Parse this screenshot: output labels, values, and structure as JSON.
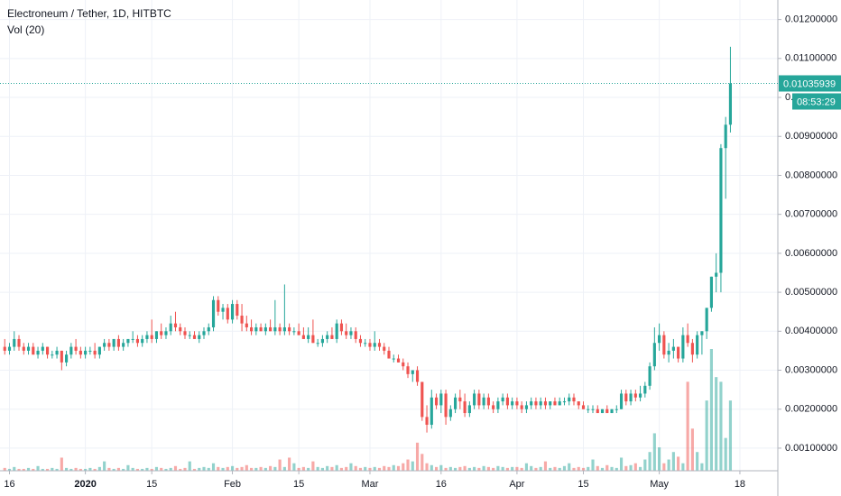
{
  "chart_data": {
    "type": "candlestick",
    "title": "Electroneum / Tether, 1D, HITBTC",
    "subtitle": "Vol (20)",
    "countdown": "08:53:29",
    "up_color": "#26a69a",
    "down_color": "#ef5350",
    "ylim": [
      0.00042,
      0.0125
    ],
    "yticks": [
      {
        "value": 0.001,
        "label": "0.00100000"
      },
      {
        "value": 0.002,
        "label": "0.00200000"
      },
      {
        "value": 0.003,
        "label": "0.00300000"
      },
      {
        "value": 0.004,
        "label": "0.00400000"
      },
      {
        "value": 0.005,
        "label": "0.00500000"
      },
      {
        "value": 0.006,
        "label": "0.00600000"
      },
      {
        "value": 0.007,
        "label": "0.00700000"
      },
      {
        "value": 0.008,
        "label": "0.00800000"
      },
      {
        "value": 0.009,
        "label": "0.00900000"
      },
      {
        "value": 0.01,
        "label": "0.01000000"
      },
      {
        "value": 0.011,
        "label": "0.01100000"
      },
      {
        "value": 0.012,
        "label": "0.01200000"
      }
    ],
    "xlim": [
      "2019-12-14",
      "2020-05-26"
    ],
    "xticks": [
      {
        "value": "2019-12-16",
        "label": "16"
      },
      {
        "value": "2020-01-01",
        "label": "2020"
      },
      {
        "value": "2020-01-15",
        "label": "15"
      },
      {
        "value": "2020-02-01",
        "label": "Feb"
      },
      {
        "value": "2020-02-15",
        "label": "15"
      },
      {
        "value": "2020-03-01",
        "label": "Mar"
      },
      {
        "value": "2020-03-16",
        "label": "16"
      },
      {
        "value": "2020-04-01",
        "label": "Apr"
      },
      {
        "value": "2020-04-15",
        "label": "15"
      },
      {
        "value": "2020-05-01",
        "label": "May"
      },
      {
        "value": "2020-05-18",
        "label": "18"
      }
    ],
    "grid": true,
    "x": [
      "2019-12-15",
      "2019-12-16",
      "2019-12-17",
      "2019-12-18",
      "2019-12-19",
      "2019-12-20",
      "2019-12-21",
      "2019-12-22",
      "2019-12-23",
      "2019-12-24",
      "2019-12-25",
      "2019-12-26",
      "2019-12-27",
      "2019-12-28",
      "2019-12-29",
      "2019-12-30",
      "2019-12-31",
      "2020-01-01",
      "2020-01-02",
      "2020-01-03",
      "2020-01-04",
      "2020-01-05",
      "2020-01-06",
      "2020-01-07",
      "2020-01-08",
      "2020-01-09",
      "2020-01-10",
      "2020-01-11",
      "2020-01-12",
      "2020-01-13",
      "2020-01-14",
      "2020-01-15",
      "2020-01-16",
      "2020-01-17",
      "2020-01-18",
      "2020-01-19",
      "2020-01-20",
      "2020-01-21",
      "2020-01-22",
      "2020-01-23",
      "2020-01-24",
      "2020-01-25",
      "2020-01-26",
      "2020-01-27",
      "2020-01-28",
      "2020-01-29",
      "2020-01-30",
      "2020-01-31",
      "2020-02-01",
      "2020-02-02",
      "2020-02-03",
      "2020-02-04",
      "2020-02-05",
      "2020-02-06",
      "2020-02-07",
      "2020-02-08",
      "2020-02-09",
      "2020-02-10",
      "2020-02-11",
      "2020-02-12",
      "2020-02-13",
      "2020-02-14",
      "2020-02-15",
      "2020-02-16",
      "2020-02-17",
      "2020-02-18",
      "2020-02-19",
      "2020-02-20",
      "2020-02-21",
      "2020-02-22",
      "2020-02-23",
      "2020-02-24",
      "2020-02-25",
      "2020-02-26",
      "2020-02-27",
      "2020-02-28",
      "2020-02-29",
      "2020-03-01",
      "2020-03-02",
      "2020-03-03",
      "2020-03-04",
      "2020-03-05",
      "2020-03-06",
      "2020-03-07",
      "2020-03-08",
      "2020-03-09",
      "2020-03-10",
      "2020-03-11",
      "2020-03-12",
      "2020-03-13",
      "2020-03-14",
      "2020-03-15",
      "2020-03-16",
      "2020-03-17",
      "2020-03-18",
      "2020-03-19",
      "2020-03-20",
      "2020-03-21",
      "2020-03-22",
      "2020-03-23",
      "2020-03-24",
      "2020-03-25",
      "2020-03-26",
      "2020-03-27",
      "2020-03-28",
      "2020-03-29",
      "2020-03-30",
      "2020-03-31",
      "2020-04-01",
      "2020-04-02",
      "2020-04-03",
      "2020-04-04",
      "2020-04-05",
      "2020-04-06",
      "2020-04-07",
      "2020-04-08",
      "2020-04-09",
      "2020-04-10",
      "2020-04-11",
      "2020-04-12",
      "2020-04-13",
      "2020-04-14",
      "2020-04-15",
      "2020-04-16",
      "2020-04-17",
      "2020-04-18",
      "2020-04-19",
      "2020-04-20",
      "2020-04-21",
      "2020-04-22",
      "2020-04-23",
      "2020-04-24",
      "2020-04-25",
      "2020-04-26",
      "2020-04-27",
      "2020-04-28",
      "2020-04-29",
      "2020-04-30",
      "2020-05-01",
      "2020-05-02",
      "2020-05-03",
      "2020-05-04",
      "2020-05-05",
      "2020-05-06",
      "2020-05-07",
      "2020-05-08",
      "2020-05-09",
      "2020-05-10",
      "2020-05-11",
      "2020-05-12",
      "2020-05-13",
      "2020-05-14",
      "2020-05-15",
      "2020-05-16"
    ],
    "ohlc": [
      [
        0.0036,
        0.0038,
        0.0034,
        0.0035
      ],
      [
        0.0035,
        0.0037,
        0.0034,
        0.0036
      ],
      [
        0.0036,
        0.004,
        0.0035,
        0.0038
      ],
      [
        0.0038,
        0.0039,
        0.0035,
        0.0036
      ],
      [
        0.0036,
        0.0037,
        0.0034,
        0.0035
      ],
      [
        0.0035,
        0.0037,
        0.0034,
        0.0036
      ],
      [
        0.0036,
        0.0037,
        0.0034,
        0.0034
      ],
      [
        0.0034,
        0.0036,
        0.0033,
        0.0035
      ],
      [
        0.0035,
        0.0037,
        0.0034,
        0.0036
      ],
      [
        0.0036,
        0.0036,
        0.0033,
        0.0034
      ],
      [
        0.0034,
        0.0035,
        0.0033,
        0.0034
      ],
      [
        0.0034,
        0.0036,
        0.0033,
        0.0035
      ],
      [
        0.0035,
        0.0035,
        0.003,
        0.0032
      ],
      [
        0.0032,
        0.0035,
        0.0031,
        0.0034
      ],
      [
        0.0034,
        0.0037,
        0.0033,
        0.0036
      ],
      [
        0.0036,
        0.0038,
        0.0034,
        0.0035
      ],
      [
        0.0035,
        0.0036,
        0.0033,
        0.0034
      ],
      [
        0.0034,
        0.0036,
        0.0033,
        0.0035
      ],
      [
        0.0035,
        0.0036,
        0.0034,
        0.0035
      ],
      [
        0.0035,
        0.0037,
        0.0033,
        0.0034
      ],
      [
        0.0034,
        0.0036,
        0.0033,
        0.0036
      ],
      [
        0.0036,
        0.0038,
        0.0035,
        0.0037
      ],
      [
        0.0037,
        0.0038,
        0.0035,
        0.0036
      ],
      [
        0.0036,
        0.0038,
        0.0035,
        0.0038
      ],
      [
        0.0038,
        0.0039,
        0.0035,
        0.0036
      ],
      [
        0.0036,
        0.0038,
        0.0035,
        0.0037
      ],
      [
        0.0037,
        0.0038,
        0.0036,
        0.0038
      ],
      [
        0.0038,
        0.004,
        0.0037,
        0.0038
      ],
      [
        0.0038,
        0.0039,
        0.0036,
        0.0037
      ],
      [
        0.0037,
        0.0039,
        0.0036,
        0.0038
      ],
      [
        0.0038,
        0.004,
        0.0037,
        0.0039
      ],
      [
        0.0039,
        0.0043,
        0.0037,
        0.0038
      ],
      [
        0.0038,
        0.004,
        0.0037,
        0.004
      ],
      [
        0.004,
        0.0042,
        0.0038,
        0.0039
      ],
      [
        0.0039,
        0.0041,
        0.0038,
        0.004
      ],
      [
        0.004,
        0.0044,
        0.0039,
        0.0042
      ],
      [
        0.0042,
        0.0045,
        0.004,
        0.0041
      ],
      [
        0.0041,
        0.0042,
        0.0039,
        0.004
      ],
      [
        0.004,
        0.0041,
        0.0038,
        0.0039
      ],
      [
        0.0039,
        0.004,
        0.0038,
        0.0039
      ],
      [
        0.0039,
        0.004,
        0.0038,
        0.0038
      ],
      [
        0.0038,
        0.004,
        0.0037,
        0.0039
      ],
      [
        0.0039,
        0.0041,
        0.0038,
        0.004
      ],
      [
        0.004,
        0.0042,
        0.0039,
        0.0041
      ],
      [
        0.0041,
        0.0049,
        0.004,
        0.0048
      ],
      [
        0.0048,
        0.0049,
        0.0044,
        0.0045
      ],
      [
        0.0045,
        0.0047,
        0.0043,
        0.0046
      ],
      [
        0.0046,
        0.0047,
        0.0042,
        0.0043
      ],
      [
        0.0043,
        0.0048,
        0.0042,
        0.0047
      ],
      [
        0.0047,
        0.0048,
        0.0043,
        0.0044
      ],
      [
        0.0044,
        0.0047,
        0.004,
        0.0042
      ],
      [
        0.0042,
        0.0044,
        0.004,
        0.0041
      ],
      [
        0.0041,
        0.0043,
        0.0039,
        0.004
      ],
      [
        0.004,
        0.0042,
        0.0039,
        0.0041
      ],
      [
        0.0041,
        0.0042,
        0.004,
        0.004
      ],
      [
        0.004,
        0.0042,
        0.0039,
        0.0041
      ],
      [
        0.0041,
        0.0043,
        0.004,
        0.004
      ],
      [
        0.004,
        0.0048,
        0.0039,
        0.0041
      ],
      [
        0.0041,
        0.0042,
        0.0039,
        0.004
      ],
      [
        0.004,
        0.0052,
        0.0039,
        0.0041
      ],
      [
        0.0041,
        0.0042,
        0.0039,
        0.004
      ],
      [
        0.004,
        0.0041,
        0.0039,
        0.004
      ],
      [
        0.004,
        0.0042,
        0.0039,
        0.0039
      ],
      [
        0.0039,
        0.0041,
        0.0038,
        0.0038
      ],
      [
        0.0038,
        0.0041,
        0.0037,
        0.0039
      ],
      [
        0.0039,
        0.0043,
        0.0037,
        0.0037
      ],
      [
        0.0037,
        0.0038,
        0.0036,
        0.0037
      ],
      [
        0.0037,
        0.0039,
        0.0036,
        0.0038
      ],
      [
        0.0038,
        0.004,
        0.0037,
        0.0039
      ],
      [
        0.0039,
        0.0041,
        0.0038,
        0.0038
      ],
      [
        0.0038,
        0.0043,
        0.0037,
        0.0042
      ],
      [
        0.0042,
        0.0043,
        0.0039,
        0.004
      ],
      [
        0.004,
        0.0042,
        0.0038,
        0.0039
      ],
      [
        0.0039,
        0.0041,
        0.0038,
        0.004
      ],
      [
        0.004,
        0.0041,
        0.0037,
        0.0038
      ],
      [
        0.0038,
        0.0039,
        0.0036,
        0.0037
      ],
      [
        0.0037,
        0.0038,
        0.0036,
        0.0037
      ],
      [
        0.0037,
        0.0038,
        0.0035,
        0.0036
      ],
      [
        0.0036,
        0.004,
        0.0035,
        0.0037
      ],
      [
        0.0037,
        0.0038,
        0.0035,
        0.0036
      ],
      [
        0.0036,
        0.0037,
        0.0034,
        0.0035
      ],
      [
        0.0035,
        0.0036,
        0.0033,
        0.0033
      ],
      [
        0.0033,
        0.0034,
        0.0032,
        0.0033
      ],
      [
        0.0033,
        0.0034,
        0.0032,
        0.0032
      ],
      [
        0.0032,
        0.0033,
        0.003,
        0.0031
      ],
      [
        0.0031,
        0.0032,
        0.0028,
        0.0029
      ],
      [
        0.0029,
        0.003,
        0.0027,
        0.003
      ],
      [
        0.003,
        0.0031,
        0.0026,
        0.0027
      ],
      [
        0.0027,
        0.0027,
        0.0017,
        0.0018
      ],
      [
        0.0018,
        0.0021,
        0.0014,
        0.0016
      ],
      [
        0.0016,
        0.0025,
        0.0015,
        0.0023
      ],
      [
        0.0023,
        0.0024,
        0.002,
        0.0021
      ],
      [
        0.0021,
        0.0025,
        0.0019,
        0.0024
      ],
      [
        0.0024,
        0.0025,
        0.0016,
        0.0018
      ],
      [
        0.0018,
        0.0021,
        0.0017,
        0.002
      ],
      [
        0.002,
        0.0024,
        0.0019,
        0.0023
      ],
      [
        0.0023,
        0.0025,
        0.002,
        0.0022
      ],
      [
        0.0022,
        0.0024,
        0.0018,
        0.0019
      ],
      [
        0.0019,
        0.0022,
        0.0018,
        0.0021
      ],
      [
        0.0021,
        0.0025,
        0.002,
        0.0024
      ],
      [
        0.0024,
        0.0025,
        0.002,
        0.0021
      ],
      [
        0.0021,
        0.0024,
        0.002,
        0.0023
      ],
      [
        0.0023,
        0.0024,
        0.002,
        0.0021
      ],
      [
        0.0021,
        0.0022,
        0.0019,
        0.002
      ],
      [
        0.002,
        0.0023,
        0.0019,
        0.0022
      ],
      [
        0.0022,
        0.0024,
        0.0021,
        0.0023
      ],
      [
        0.0023,
        0.0024,
        0.002,
        0.0021
      ],
      [
        0.0021,
        0.0023,
        0.002,
        0.0022
      ],
      [
        0.0022,
        0.0023,
        0.002,
        0.0021
      ],
      [
        0.0021,
        0.0022,
        0.0019,
        0.002
      ],
      [
        0.002,
        0.0022,
        0.0019,
        0.0021
      ],
      [
        0.0021,
        0.0023,
        0.002,
        0.0022
      ],
      [
        0.0022,
        0.0023,
        0.002,
        0.0021
      ],
      [
        0.0021,
        0.0023,
        0.002,
        0.0022
      ],
      [
        0.0022,
        0.0023,
        0.002,
        0.0021
      ],
      [
        0.0021,
        0.0022,
        0.002,
        0.0022
      ],
      [
        0.0022,
        0.0023,
        0.0021,
        0.0021
      ],
      [
        0.0021,
        0.0023,
        0.0021,
        0.0022
      ],
      [
        0.0022,
        0.0023,
        0.0021,
        0.0022
      ],
      [
        0.0022,
        0.0024,
        0.0021,
        0.0023
      ],
      [
        0.0023,
        0.0024,
        0.0021,
        0.0022
      ],
      [
        0.0022,
        0.0022,
        0.002,
        0.0021
      ],
      [
        0.0021,
        0.0022,
        0.002,
        0.002
      ],
      [
        0.002,
        0.0021,
        0.0019,
        0.002
      ],
      [
        0.002,
        0.0021,
        0.0019,
        0.002
      ],
      [
        0.002,
        0.0021,
        0.0019,
        0.0019
      ],
      [
        0.0019,
        0.002,
        0.0019,
        0.002
      ],
      [
        0.002,
        0.0021,
        0.0019,
        0.0019
      ],
      [
        0.0019,
        0.002,
        0.0019,
        0.002
      ],
      [
        0.002,
        0.0021,
        0.0019,
        0.002
      ],
      [
        0.002,
        0.0025,
        0.002,
        0.0024
      ],
      [
        0.0024,
        0.0025,
        0.0021,
        0.0022
      ],
      [
        0.0022,
        0.0025,
        0.0021,
        0.0024
      ],
      [
        0.0024,
        0.0025,
        0.0022,
        0.0023
      ],
      [
        0.0023,
        0.0026,
        0.0022,
        0.0024
      ],
      [
        0.0024,
        0.0027,
        0.0023,
        0.0026
      ],
      [
        0.0026,
        0.0032,
        0.0025,
        0.0031
      ],
      [
        0.0031,
        0.0041,
        0.003,
        0.0037
      ],
      [
        0.0037,
        0.0042,
        0.0035,
        0.0039
      ],
      [
        0.0039,
        0.004,
        0.0033,
        0.0034
      ],
      [
        0.0034,
        0.0037,
        0.0032,
        0.0035
      ],
      [
        0.0035,
        0.0038,
        0.0033,
        0.0036
      ],
      [
        0.0036,
        0.0036,
        0.0032,
        0.0033
      ],
      [
        0.0033,
        0.0041,
        0.0032,
        0.0039
      ],
      [
        0.0039,
        0.0042,
        0.0036,
        0.0037
      ],
      [
        0.0037,
        0.0038,
        0.0032,
        0.0034
      ],
      [
        0.0034,
        0.004,
        0.0033,
        0.0039
      ],
      [
        0.0039,
        0.004,
        0.0034,
        0.004
      ],
      [
        0.004,
        0.0046,
        0.0038,
        0.0046
      ],
      [
        0.0046,
        0.0054,
        0.0045,
        0.0054
      ],
      [
        0.0054,
        0.006,
        0.005,
        0.0055
      ],
      [
        0.0055,
        0.0088,
        0.005,
        0.0087
      ],
      [
        0.0087,
        0.0095,
        0.0074,
        0.0093
      ],
      [
        0.0093,
        0.0113,
        0.0091,
        0.01035939
      ]
    ],
    "volume": [
      3,
      2,
      4,
      2,
      2,
      3,
      2,
      5,
      2,
      2,
      3,
      2,
      14,
      3,
      2,
      3,
      2,
      2,
      3,
      2,
      4,
      10,
      3,
      2,
      3,
      2,
      6,
      3,
      2,
      2,
      3,
      2,
      4,
      3,
      2,
      3,
      5,
      2,
      3,
      10,
      2,
      3,
      4,
      3,
      8,
      4,
      3,
      4,
      5,
      3,
      4,
      6,
      3,
      3,
      4,
      3,
      5,
      4,
      12,
      4,
      14,
      8,
      3,
      4,
      3,
      10,
      4,
      3,
      5,
      4,
      6,
      3,
      4,
      8,
      5,
      3,
      4,
      3,
      4,
      3,
      5,
      4,
      6,
      5,
      8,
      12,
      10,
      30,
      18,
      8,
      6,
      4,
      6,
      3,
      4,
      3,
      4,
      5,
      3,
      4,
      3,
      5,
      4,
      3,
      5,
      4,
      3,
      4,
      4,
      3,
      8,
      5,
      3,
      4,
      10,
      3,
      4,
      3,
      5,
      8,
      3,
      4,
      3,
      4,
      12,
      5,
      3,
      6,
      4,
      3,
      14,
      5,
      6,
      8,
      4,
      12,
      20,
      40,
      25,
      8,
      12,
      20,
      15,
      8,
      95,
      45,
      20,
      8,
      75,
      130,
      100,
      95,
      35,
      75
    ]
  }
}
